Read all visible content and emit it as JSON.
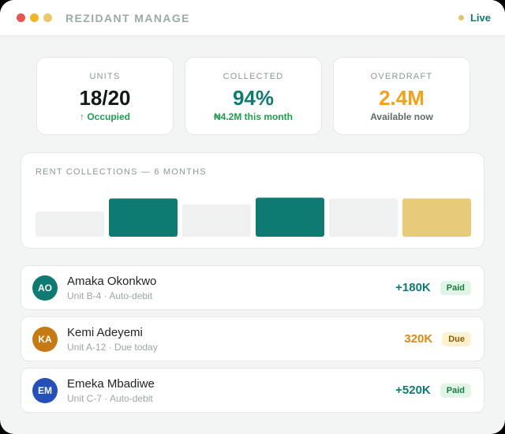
{
  "window": {
    "title": "REZIDANT MANAGE",
    "controls": [
      {
        "name": "close-icon",
        "color": "#e8554e"
      },
      {
        "name": "minimize-icon",
        "color": "#f0b429"
      },
      {
        "name": "zoom-icon",
        "color": "#e8c86a"
      }
    ],
    "status": {
      "label": "Live",
      "dot_color": "#e2c56b",
      "color": "#0f7a72"
    }
  },
  "stats": [
    {
      "label": "UNITS",
      "value": "18/20",
      "sub": "↑ Occupied",
      "value_color": "#111a16",
      "sub_color": "#1e9e4e"
    },
    {
      "label": "COLLECTED",
      "value": "94%",
      "sub": "₦4.2M this month",
      "value_color": "#0f7a72",
      "sub_color": "#1e9e4e"
    },
    {
      "label": "OVERDRAFT",
      "value": "2.4M",
      "sub": "Available now",
      "value_color": "#f0a21a",
      "sub_color": "#5f6e68"
    }
  ],
  "chart_data": {
    "type": "bar",
    "title": "RENT COLLECTIONS — 6 MONTHS",
    "categories": [
      "",
      "",
      "",
      "",
      "",
      ""
    ],
    "values": [
      34,
      52,
      44,
      53,
      52,
      52
    ],
    "colors": [
      "#eef1f0",
      "#0f7a72",
      "#eef1f0",
      "#0f7a72",
      "#eef1f0",
      "#e6cb78"
    ],
    "ylim": [
      0,
      60
    ],
    "grid": false,
    "legend": "none",
    "xlabel": "",
    "ylabel": ""
  },
  "tenants": [
    {
      "initials": "AO",
      "name": "Amaka Okonkwo",
      "detail": "Unit B-4 · Auto-debit",
      "amount": "+180K",
      "amount_color": "#0f7a72",
      "status": "Paid",
      "status_bg": "#dff5e6",
      "status_color": "#1b7a45",
      "avatar_color": "#0f7a72"
    },
    {
      "initials": "KA",
      "name": "Kemi Adeyemi",
      "detail": "Unit A-12 · Due today",
      "amount": "320K",
      "amount_color": "#d98a12",
      "status": "Due",
      "status_bg": "#fdf1cf",
      "status_color": "#8a5a0a",
      "avatar_color": "#c67a14"
    },
    {
      "initials": "EM",
      "name": "Emeka Mbadiwe",
      "detail": "Unit C-7 · Auto-debit",
      "amount": "+520K",
      "amount_color": "#0f7a72",
      "status": "Paid",
      "status_bg": "#dff5e6",
      "status_color": "#1b7a45",
      "avatar_color": "#2450b8"
    }
  ]
}
